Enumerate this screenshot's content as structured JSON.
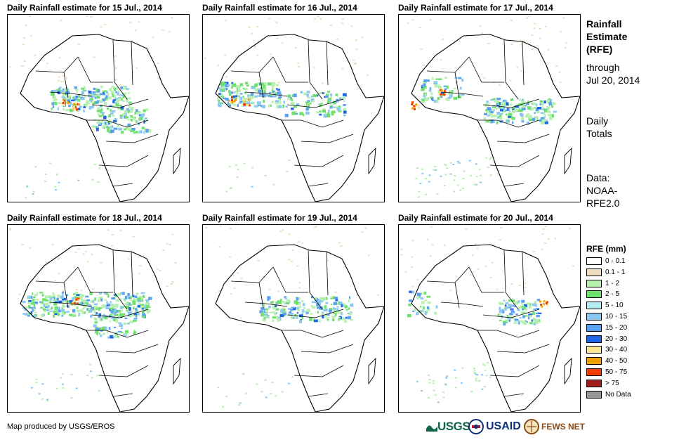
{
  "panels": [
    {
      "title": "Daily Rainfall estimate for 15 Jul., 2014"
    },
    {
      "title": "Daily Rainfall estimate for 16 Jul., 2014"
    },
    {
      "title": "Daily Rainfall estimate for 17 Jul., 2014"
    },
    {
      "title": "Daily Rainfall estimate for 18 Jul., 2014"
    },
    {
      "title": "Daily Rainfall estimate for 19 Jul., 2014"
    },
    {
      "title": "Daily Rainfall estimate for 20 Jul., 2014"
    }
  ],
  "sidebar": {
    "title_line1": "Rainfall",
    "title_line2": "Estimate",
    "title_line3": "(RFE)",
    "through": "through",
    "date": "Jul 20, 2014",
    "totals_line1": "Daily",
    "totals_line2": "Totals",
    "data_line1": "Data:",
    "data_line2": "NOAA-",
    "data_line3": "RFE2.0"
  },
  "legend": {
    "title": "RFE (mm)",
    "items": [
      {
        "label": "0 - 0.1",
        "color": "#ffffff"
      },
      {
        "label": "0.1 - 1",
        "color": "#f0dcbe"
      },
      {
        "label": "1 - 2",
        "color": "#b8f0b0"
      },
      {
        "label": "2 - 5",
        "color": "#6ee06e"
      },
      {
        "label": "5 - 10",
        "color": "#b4ecf4"
      },
      {
        "label": "10 - 15",
        "color": "#8cc8f0"
      },
      {
        "label": "15 - 20",
        "color": "#5aa0f0"
      },
      {
        "label": "20 - 30",
        "color": "#1e64e6"
      },
      {
        "label": "30 - 40",
        "color": "#fae696"
      },
      {
        "label": "40 - 50",
        "color": "#f0a000"
      },
      {
        "label": "50 - 75",
        "color": "#f03c00"
      },
      {
        "label": "> 75",
        "color": "#a01e1e"
      },
      {
        "label": "No Data",
        "color": "#969696"
      }
    ]
  },
  "footer": {
    "credit": "Map produced by USGS/EROS",
    "usgs_logo": "USGS",
    "usaid_logo": "USAID",
    "fews_logo": "FEWS NET"
  }
}
